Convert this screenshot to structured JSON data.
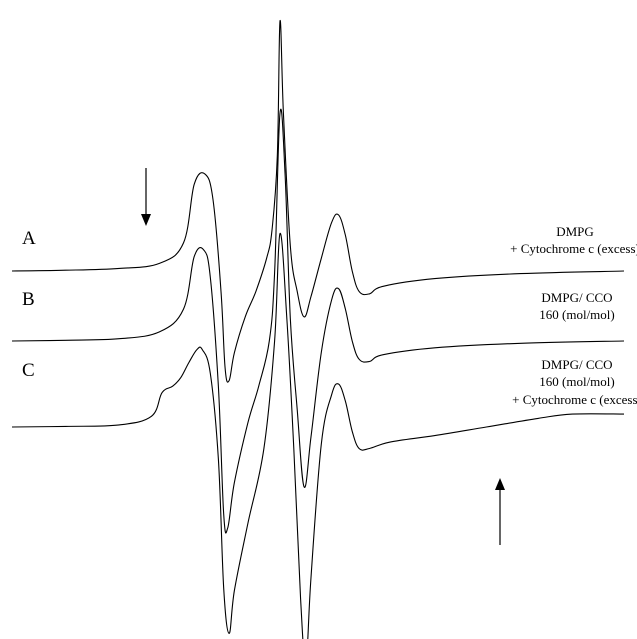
{
  "chart_data": {
    "type": "line",
    "title": "",
    "xlabel": "",
    "ylabel": "",
    "grid": false,
    "legend": "none",
    "series": [
      {
        "name": "A",
        "annotation": [
          "DMPG",
          "+ Cytochrome c (excess)"
        ],
        "points": [
          [
            -1.0,
            0.0
          ],
          [
            -0.8,
            0.003
          ],
          [
            -0.6,
            0.01
          ],
          [
            -0.45,
            0.03
          ],
          [
            -0.36,
            0.11
          ],
          [
            -0.32,
            0.34
          ],
          [
            -0.28,
            0.38
          ],
          [
            -0.25,
            0.28
          ],
          [
            -0.22,
            -0.08
          ],
          [
            -0.205,
            -0.38
          ],
          [
            -0.19,
            -0.43
          ],
          [
            -0.17,
            -0.32
          ],
          [
            -0.13,
            -0.18
          ],
          [
            -0.09,
            -0.08
          ],
          [
            -0.05,
            0.05
          ],
          [
            -0.03,
            0.16
          ],
          [
            -0.01,
            0.45
          ],
          [
            0.0,
            0.98
          ],
          [
            0.01,
            0.62
          ],
          [
            0.03,
            0.1
          ],
          [
            0.05,
            -0.08
          ],
          [
            0.07,
            -0.18
          ],
          [
            0.09,
            -0.1
          ],
          [
            0.12,
            0.05
          ],
          [
            0.15,
            0.19
          ],
          [
            0.17,
            0.22
          ],
          [
            0.19,
            0.14
          ],
          [
            0.21,
            0.0
          ],
          [
            0.23,
            -0.08
          ],
          [
            0.26,
            -0.09
          ],
          [
            0.3,
            -0.06
          ],
          [
            0.45,
            -0.03
          ],
          [
            0.7,
            -0.01
          ],
          [
            1.0,
            0.0
          ]
        ]
      },
      {
        "name": "B",
        "annotation": [
          "DMPG/ CCO",
          "160 (mol/mol)"
        ],
        "points": [
          [
            -1.0,
            0.0
          ],
          [
            -0.8,
            0.003
          ],
          [
            -0.6,
            0.01
          ],
          [
            -0.45,
            0.04
          ],
          [
            -0.36,
            0.14
          ],
          [
            -0.32,
            0.37
          ],
          [
            -0.285,
            0.4
          ],
          [
            -0.26,
            0.28
          ],
          [
            -0.23,
            -0.2
          ],
          [
            -0.21,
            -0.76
          ],
          [
            -0.195,
            -0.82
          ],
          [
            -0.17,
            -0.62
          ],
          [
            -0.12,
            -0.36
          ],
          [
            -0.08,
            -0.2
          ],
          [
            -0.04,
            0.0
          ],
          [
            -0.02,
            0.3
          ],
          [
            0.0,
            1.0
          ],
          [
            0.015,
            0.72
          ],
          [
            0.03,
            0.1
          ],
          [
            0.05,
            -0.3
          ],
          [
            0.07,
            -0.64
          ],
          [
            0.09,
            -0.42
          ],
          [
            0.12,
            -0.05
          ],
          [
            0.15,
            0.18
          ],
          [
            0.17,
            0.23
          ],
          [
            0.19,
            0.14
          ],
          [
            0.21,
            0.0
          ],
          [
            0.23,
            -0.08
          ],
          [
            0.26,
            -0.09
          ],
          [
            0.3,
            -0.06
          ],
          [
            0.45,
            -0.03
          ],
          [
            0.7,
            -0.01
          ],
          [
            1.0,
            0.0
          ]
        ]
      },
      {
        "name": "C",
        "annotation": [
          "DMPG/ CCO",
          "160 (mol/mol)",
          "+ Cytochrome c (excess)"
        ],
        "points": [
          [
            -1.0,
            0.0
          ],
          [
            -0.8,
            0.003
          ],
          [
            -0.6,
            0.01
          ],
          [
            -0.48,
            0.05
          ],
          [
            -0.44,
            0.16
          ],
          [
            -0.4,
            0.19
          ],
          [
            -0.37,
            0.23
          ],
          [
            -0.34,
            0.3
          ],
          [
            -0.31,
            0.36
          ],
          [
            -0.29,
            0.36
          ],
          [
            -0.26,
            0.25
          ],
          [
            -0.23,
            -0.15
          ],
          [
            -0.21,
            -0.75
          ],
          [
            -0.19,
            -0.96
          ],
          [
            -0.17,
            -0.76
          ],
          [
            -0.12,
            -0.45
          ],
          [
            -0.06,
            -0.1
          ],
          [
            -0.02,
            0.4
          ],
          [
            0.0,
            0.9
          ],
          [
            0.02,
            0.5
          ],
          [
            0.04,
            -0.1
          ],
          [
            0.06,
            -0.8
          ],
          [
            0.075,
            -1.1
          ],
          [
            0.09,
            -0.7
          ],
          [
            0.12,
            -0.08
          ],
          [
            0.15,
            0.15
          ],
          [
            0.17,
            0.2
          ],
          [
            0.19,
            0.12
          ],
          [
            0.21,
            -0.02
          ],
          [
            0.23,
            -0.1
          ],
          [
            0.26,
            -0.1
          ],
          [
            0.32,
            -0.07
          ],
          [
            0.45,
            -0.04
          ],
          [
            0.6,
            0.0
          ],
          [
            0.75,
            0.04
          ],
          [
            0.85,
            0.06
          ],
          [
            1.0,
            0.06
          ]
        ]
      }
    ],
    "arrows": [
      {
        "direction": "down",
        "near": "A"
      },
      {
        "direction": "up",
        "near": "C"
      }
    ]
  }
}
